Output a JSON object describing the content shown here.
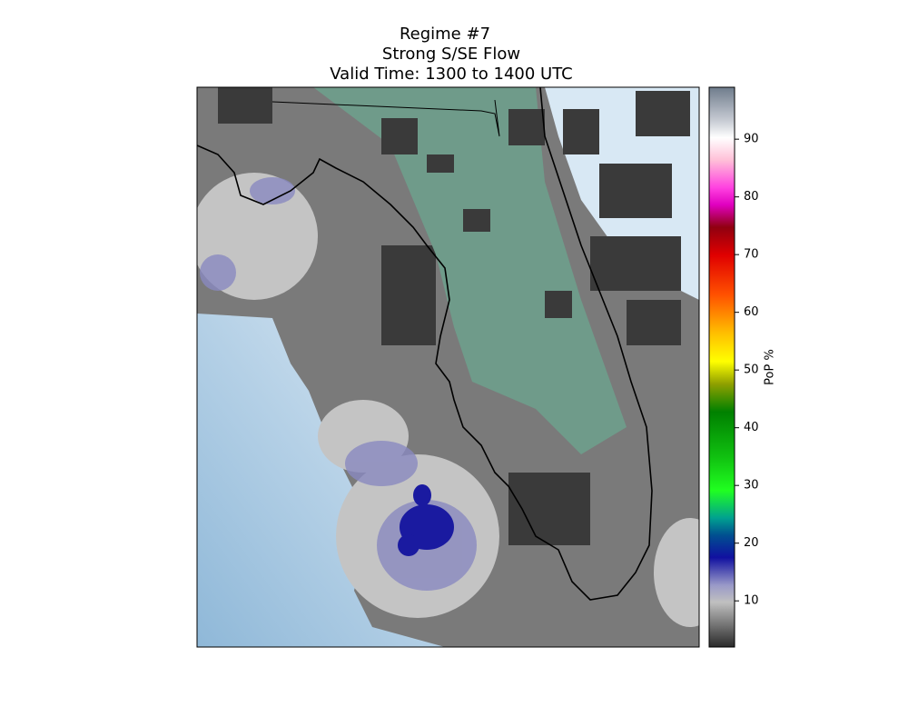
{
  "title": {
    "lines": [
      "Regime #7",
      "Strong S/SE Flow",
      "Valid Time: 1300 to 1400 UTC"
    ]
  },
  "colorbar": {
    "label": "PoP %",
    "lim": [
      2,
      99
    ],
    "ticks": [
      10,
      20,
      30,
      40,
      50,
      60,
      70,
      80,
      90
    ]
  }
}
